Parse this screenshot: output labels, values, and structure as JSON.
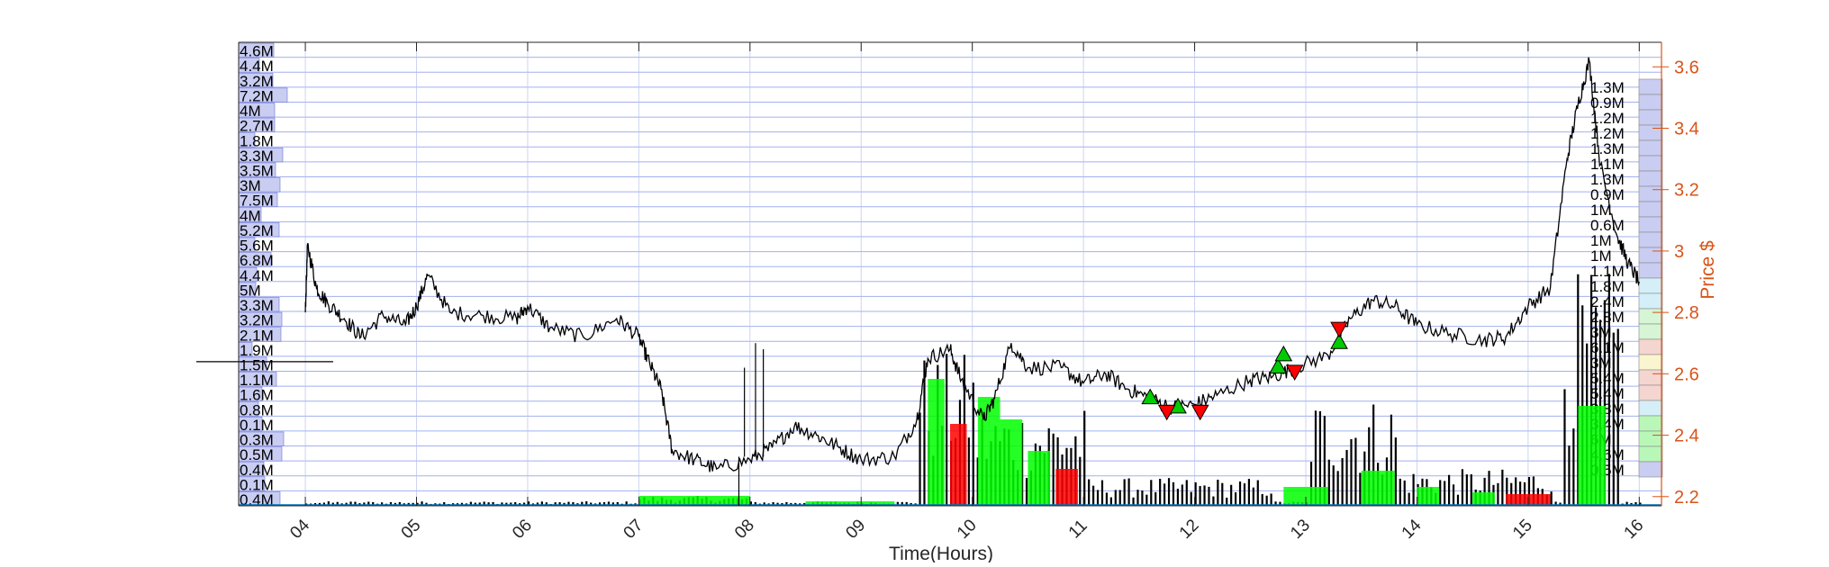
{
  "chart_data": {
    "type": "line",
    "xlabel": "Time(Hours)",
    "ylabel": "Price $",
    "x_ticks": [
      "04",
      "05",
      "06",
      "07",
      "08",
      "09",
      "10",
      "11",
      "12",
      "13",
      "14",
      "15",
      "16"
    ],
    "xlim": [
      3.4,
      16.2
    ],
    "ylim": [
      2.17,
      3.68
    ],
    "y_ticks": [
      2.2,
      2.4,
      2.6,
      2.8,
      3.0,
      3.2,
      3.4,
      3.6
    ],
    "y_tick_labels": [
      "2.2",
      "2.4",
      "2.6",
      "2.8",
      "3",
      "3.2",
      "3.4",
      "3.6"
    ],
    "grid": "horizontal price-level lines",
    "price_series": {
      "name": "",
      "color": "#000000",
      "points": [
        [
          4.0,
          2.8
        ],
        [
          4.02,
          3.02
        ],
        [
          4.1,
          2.88
        ],
        [
          4.2,
          2.83
        ],
        [
          4.35,
          2.78
        ],
        [
          4.5,
          2.72
        ],
        [
          4.7,
          2.79
        ],
        [
          4.9,
          2.76
        ],
        [
          5.0,
          2.82
        ],
        [
          5.1,
          2.92
        ],
        [
          5.3,
          2.8
        ],
        [
          5.6,
          2.79
        ],
        [
          5.9,
          2.78
        ],
        [
          6.0,
          2.82
        ],
        [
          6.2,
          2.75
        ],
        [
          6.5,
          2.72
        ],
        [
          6.8,
          2.78
        ],
        [
          7.0,
          2.72
        ],
        [
          7.1,
          2.63
        ],
        [
          7.2,
          2.55
        ],
        [
          7.3,
          2.35
        ],
        [
          7.5,
          2.32
        ],
        [
          7.7,
          2.29
        ],
        [
          8.0,
          2.32
        ],
        [
          8.2,
          2.36
        ],
        [
          8.4,
          2.43
        ],
        [
          8.6,
          2.4
        ],
        [
          8.8,
          2.36
        ],
        [
          9.0,
          2.32
        ],
        [
          9.3,
          2.33
        ],
        [
          9.5,
          2.45
        ],
        [
          9.6,
          2.65
        ],
        [
          9.8,
          2.68
        ],
        [
          9.9,
          2.58
        ],
        [
          10.1,
          2.45
        ],
        [
          10.2,
          2.52
        ],
        [
          10.35,
          2.7
        ],
        [
          10.5,
          2.62
        ],
        [
          10.8,
          2.62
        ],
        [
          11.0,
          2.57
        ],
        [
          11.2,
          2.6
        ],
        [
          11.4,
          2.55
        ],
        [
          11.6,
          2.52
        ],
        [
          11.8,
          2.49
        ],
        [
          12.0,
          2.5
        ],
        [
          12.2,
          2.53
        ],
        [
          12.5,
          2.58
        ],
        [
          12.7,
          2.59
        ],
        [
          12.9,
          2.62
        ],
        [
          13.2,
          2.66
        ],
        [
          13.4,
          2.78
        ],
        [
          13.6,
          2.84
        ],
        [
          13.8,
          2.82
        ],
        [
          14.0,
          2.76
        ],
        [
          14.3,
          2.73
        ],
        [
          14.6,
          2.71
        ],
        [
          14.8,
          2.72
        ],
        [
          15.0,
          2.82
        ],
        [
          15.2,
          2.88
        ],
        [
          15.35,
          3.3
        ],
        [
          15.45,
          3.48
        ],
        [
          15.55,
          3.62
        ],
        [
          15.65,
          3.28
        ],
        [
          15.8,
          3.05
        ],
        [
          15.9,
          2.96
        ],
        [
          16.0,
          2.9
        ]
      ]
    },
    "buy_markers": [
      [
        11.6,
        2.52
      ],
      [
        11.85,
        2.49
      ],
      [
        12.75,
        2.62
      ],
      [
        12.8,
        2.66
      ],
      [
        13.3,
        2.7
      ]
    ],
    "sell_markers": [
      [
        11.75,
        2.48
      ],
      [
        12.05,
        2.48
      ],
      [
        12.9,
        2.61
      ],
      [
        13.3,
        2.75
      ]
    ],
    "left_profile_labels": [
      "4.6M",
      "4.4M",
      "3.2M",
      "7.2M",
      "4M",
      "2.7M",
      "1.8M",
      "3.3M",
      "3.5M",
      "3M",
      "7.5M",
      "4M",
      "5.2M",
      "5.6M",
      "6.8M",
      "4.4M",
      "5M",
      "3.3M",
      "3.2M",
      "2.1M",
      "1.9M",
      "1.5M",
      "1.1M",
      "1.6M",
      "0.8M",
      "0.1M",
      "0.3M",
      "0.5M",
      "0.4M",
      "0.1M",
      "0.4M"
    ],
    "right_profile_labels": [
      "1.3M",
      "0.9M",
      "1.2M",
      "1.2M",
      "1.3M",
      "1.1M",
      "1.3M",
      "0.9M",
      "1M",
      "0.6M",
      "1M",
      "1M",
      "1.1M",
      "1.8M",
      "2.4M",
      "2.8M",
      "3M",
      "6.1M",
      "3M",
      "5.4M",
      "5.4M",
      "3.8M",
      "3.4M",
      "6M",
      "4.6M",
      "0.5M"
    ],
    "colors": {
      "price": "#000000",
      "right_axis": "#d95319",
      "buy": "#00cc00",
      "sell": "#ff0000",
      "grid": "#7b8fe8",
      "volume_up": "#00ff00",
      "volume_down": "#ff0000"
    }
  }
}
